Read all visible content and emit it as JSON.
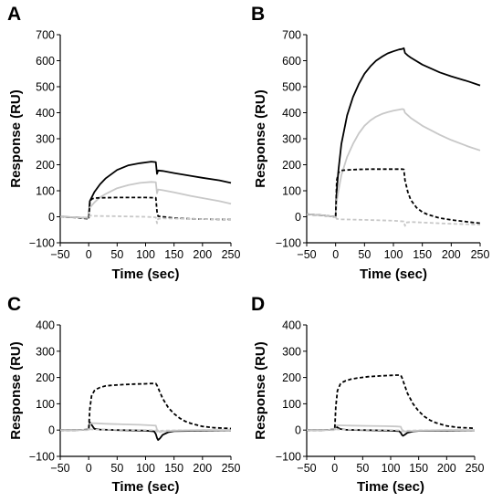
{
  "chart_data": [
    {
      "type": "line",
      "panel_label": "A",
      "xlabel": "Time (sec)",
      "ylabel": "Response (RU)",
      "xlim": [
        -50,
        250
      ],
      "ylim": [
        -100,
        700
      ],
      "xticks": [
        -50,
        0,
        50,
        100,
        150,
        200,
        250
      ],
      "yticks": [
        -100,
        0,
        100,
        200,
        300,
        400,
        500,
        600,
        700
      ],
      "grid": false,
      "legend": "none",
      "series": [
        {
          "style": "solid-black",
          "color": "#000000",
          "x": [
            -50,
            -20,
            0,
            2,
            10,
            20,
            30,
            50,
            70,
            90,
            110,
            118,
            120,
            122,
            130,
            150,
            180,
            200,
            230,
            250
          ],
          "y": [
            0,
            -2,
            -5,
            60,
            95,
            125,
            148,
            180,
            198,
            206,
            212,
            210,
            165,
            178,
            176,
            168,
            157,
            150,
            140,
            130
          ]
        },
        {
          "style": "solid-gray",
          "color": "#c8c8c8",
          "x": [
            -50,
            -20,
            0,
            2,
            10,
            20,
            30,
            50,
            70,
            90,
            110,
            118,
            120,
            122,
            130,
            150,
            180,
            200,
            230,
            250
          ],
          "y": [
            0,
            -2,
            -5,
            35,
            55,
            75,
            88,
            110,
            122,
            130,
            134,
            133,
            90,
            105,
            102,
            94,
            80,
            72,
            60,
            50
          ]
        },
        {
          "style": "dashed-black",
          "color": "#000000",
          "x": [
            -50,
            -20,
            0,
            2,
            5,
            10,
            20,
            50,
            80,
            100,
            118,
            120,
            122,
            130,
            150,
            180,
            200,
            230,
            250
          ],
          "y": [
            0,
            -3,
            -8,
            55,
            68,
            72,
            73,
            74,
            74,
            74,
            73,
            20,
            2,
            0,
            -5,
            -8,
            -9,
            -10,
            -10
          ]
        },
        {
          "style": "dashed-gray",
          "color": "#c8c8c8",
          "x": [
            -50,
            -20,
            0,
            2,
            10,
            50,
            100,
            118,
            120,
            122,
            130,
            150,
            200,
            250
          ],
          "y": [
            0,
            -2,
            -5,
            5,
            3,
            2,
            0,
            -2,
            -25,
            -8,
            -6,
            -7,
            -9,
            -10
          ]
        }
      ]
    },
    {
      "type": "line",
      "panel_label": "B",
      "xlabel": "Time (sec)",
      "ylabel": "Response (RU)",
      "xlim": [
        -50,
        250
      ],
      "ylim": [
        -100,
        700
      ],
      "xticks": [
        -50,
        0,
        50,
        100,
        150,
        200,
        250
      ],
      "yticks": [
        -100,
        0,
        100,
        200,
        300,
        400,
        500,
        600,
        700
      ],
      "grid": false,
      "legend": "none",
      "series": [
        {
          "style": "solid-black",
          "color": "#000000",
          "x": [
            -50,
            -20,
            0,
            2,
            5,
            10,
            20,
            30,
            40,
            50,
            60,
            70,
            80,
            90,
            100,
            110,
            115,
            118,
            120,
            125,
            130,
            150,
            180,
            200,
            230,
            250
          ],
          "y": [
            10,
            5,
            0,
            100,
            180,
            280,
            390,
            460,
            510,
            550,
            578,
            600,
            615,
            628,
            636,
            643,
            645,
            648,
            630,
            620,
            612,
            585,
            555,
            540,
            520,
            505
          ]
        },
        {
          "style": "solid-gray",
          "color": "#c8c8c8",
          "x": [
            -50,
            -20,
            0,
            2,
            5,
            10,
            20,
            30,
            40,
            50,
            60,
            70,
            80,
            90,
            100,
            110,
            115,
            118,
            120,
            125,
            130,
            150,
            180,
            200,
            230,
            250
          ],
          "y": [
            10,
            5,
            0,
            60,
            100,
            160,
            230,
            280,
            320,
            350,
            370,
            385,
            395,
            402,
            408,
            412,
            414,
            413,
            400,
            390,
            380,
            350,
            315,
            295,
            270,
            255
          ]
        },
        {
          "style": "dashed-black",
          "color": "#000000",
          "x": [
            -50,
            -20,
            0,
            2,
            5,
            10,
            20,
            40,
            60,
            80,
            100,
            115,
            118,
            120,
            125,
            130,
            140,
            150,
            160,
            180,
            200,
            230,
            250
          ],
          "y": [
            10,
            5,
            0,
            140,
            170,
            178,
            180,
            182,
            183,
            183,
            183,
            183,
            182,
            140,
            95,
            65,
            35,
            18,
            8,
            -5,
            -12,
            -20,
            -25
          ]
        },
        {
          "style": "dashed-gray",
          "color": "#c8c8c8",
          "x": [
            -50,
            -20,
            0,
            2,
            10,
            50,
            100,
            118,
            120,
            122,
            130,
            150,
            200,
            250
          ],
          "y": [
            10,
            5,
            0,
            -8,
            -10,
            -12,
            -15,
            -18,
            -35,
            -22,
            -20,
            -22,
            -27,
            -30
          ]
        }
      ]
    },
    {
      "type": "line",
      "panel_label": "C",
      "xlabel": "Time (sec)",
      "ylabel": "Response (RU)",
      "xlim": [
        -50,
        250
      ],
      "ylim": [
        -100,
        400
      ],
      "xticks": [
        -50,
        0,
        50,
        100,
        150,
        200,
        250
      ],
      "yticks": [
        -100,
        0,
        100,
        200,
        300,
        400
      ],
      "grid": false,
      "legend": "none",
      "series": [
        {
          "style": "solid-black",
          "color": "#000000",
          "x": [
            -50,
            -20,
            0,
            2,
            5,
            10,
            20,
            50,
            100,
            115,
            118,
            120,
            122,
            125,
            130,
            140,
            150,
            200,
            250
          ],
          "y": [
            0,
            0,
            2,
            30,
            20,
            5,
            2,
            0,
            -2,
            -5,
            -15,
            -30,
            -38,
            -32,
            -18,
            -8,
            -4,
            -2,
            -1
          ]
        },
        {
          "style": "solid-gray",
          "color": "#c8c8c8",
          "x": [
            -50,
            -20,
            0,
            2,
            5,
            10,
            30,
            60,
            90,
            110,
            118,
            120,
            125,
            130,
            150,
            200,
            250
          ],
          "y": [
            0,
            0,
            2,
            22,
            26,
            26,
            24,
            22,
            20,
            18,
            17,
            2,
            -8,
            -5,
            -2,
            0,
            0
          ]
        },
        {
          "style": "dashed-black",
          "color": "#000000",
          "x": [
            -50,
            -20,
            0,
            2,
            5,
            10,
            15,
            20,
            30,
            40,
            60,
            80,
            100,
            110,
            118,
            120,
            125,
            130,
            140,
            150,
            160,
            170,
            180,
            200,
            220,
            250
          ],
          "y": [
            0,
            0,
            2,
            80,
            130,
            150,
            157,
            162,
            168,
            170,
            173,
            175,
            176,
            177,
            177,
            170,
            145,
            120,
            85,
            62,
            45,
            33,
            25,
            14,
            9,
            6
          ]
        },
        {
          "style": "dashed-gray",
          "color": "#c8c8c8",
          "x": [
            -50,
            -20,
            0,
            2,
            10,
            50,
            100,
            118,
            120,
            125,
            130,
            150,
            200,
            250
          ],
          "y": [
            0,
            0,
            0,
            3,
            2,
            1,
            0,
            -1,
            -6,
            -3,
            -2,
            -1,
            0,
            0
          ]
        }
      ]
    },
    {
      "type": "line",
      "panel_label": "D",
      "xlabel": "Time (sec)",
      "ylabel": "Response (RU)",
      "xlim": [
        -50,
        250
      ],
      "ylim": [
        -100,
        400
      ],
      "xticks": [
        -50,
        0,
        50,
        100,
        150,
        200,
        250
      ],
      "yticks": [
        -100,
        0,
        100,
        200,
        300,
        400
      ],
      "grid": false,
      "legend": "none",
      "series": [
        {
          "style": "solid-black",
          "color": "#000000",
          "x": [
            -50,
            -20,
            0,
            2,
            5,
            10,
            20,
            50,
            100,
            115,
            118,
            120,
            122,
            125,
            130,
            140,
            150,
            200,
            250
          ],
          "y": [
            0,
            0,
            2,
            14,
            10,
            4,
            1,
            0,
            -2,
            -4,
            -10,
            -18,
            -22,
            -18,
            -10,
            -5,
            -3,
            -2,
            -1
          ]
        },
        {
          "style": "solid-gray",
          "color": "#c8c8c8",
          "x": [
            -50,
            -20,
            0,
            2,
            5,
            10,
            30,
            60,
            90,
            110,
            118,
            120,
            125,
            130,
            150,
            200,
            250
          ],
          "y": [
            0,
            0,
            2,
            16,
            18,
            18,
            17,
            16,
            15,
            14,
            13,
            2,
            -6,
            -4,
            -2,
            0,
            0
          ]
        },
        {
          "style": "dashed-black",
          "color": "#000000",
          "x": [
            -50,
            -20,
            0,
            2,
            5,
            10,
            15,
            20,
            30,
            40,
            60,
            80,
            100,
            110,
            118,
            120,
            125,
            130,
            140,
            150,
            160,
            170,
            180,
            200,
            220,
            250
          ],
          "y": [
            0,
            0,
            2,
            90,
            150,
            175,
            183,
            188,
            194,
            198,
            203,
            206,
            208,
            209,
            209,
            200,
            170,
            140,
            100,
            72,
            52,
            38,
            28,
            16,
            10,
            7
          ]
        },
        {
          "style": "dashed-gray",
          "color": "#c8c8c8",
          "x": [
            -50,
            -20,
            0,
            2,
            10,
            50,
            100,
            118,
            120,
            125,
            130,
            150,
            200,
            250
          ],
          "y": [
            0,
            0,
            0,
            3,
            2,
            1,
            0,
            -1,
            -5,
            -3,
            -2,
            -1,
            0,
            0
          ]
        }
      ]
    }
  ]
}
